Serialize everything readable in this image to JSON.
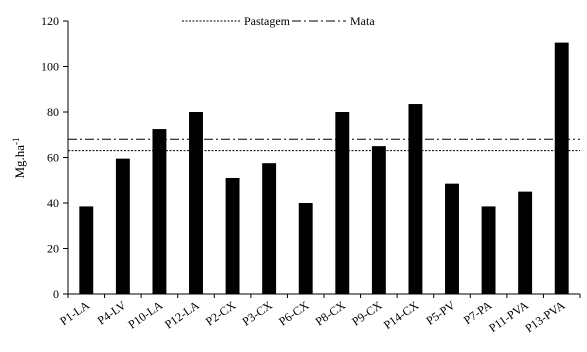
{
  "chart_data": {
    "type": "bar",
    "categories": [
      "P1-LA",
      "P4-LV",
      "P10-LA",
      "P12-LA",
      "P2-CX",
      "P3-CX",
      "P6-CX",
      "P8-CX",
      "P9-CX",
      "P14-CX",
      "P5-PV",
      "P7-PA",
      "P11-PVA",
      "P13-PVA"
    ],
    "values": [
      38.5,
      59.5,
      72.5,
      80,
      51,
      57.5,
      40,
      80,
      65,
      83.5,
      48.5,
      38.5,
      45,
      110.5
    ],
    "ylabel": "Mg.ha-1",
    "ylim": [
      0,
      120
    ],
    "yticks": [
      0,
      20,
      40,
      60,
      80,
      100,
      120
    ],
    "grid": false,
    "bar_color": "#000000",
    "reference_lines": [
      {
        "name": "Pastagem",
        "value": 63,
        "style": "dotted"
      },
      {
        "name": "Mata",
        "value": 68,
        "style": "dash-dot"
      }
    ],
    "legend": {
      "placement": "top-center",
      "entries": [
        "Pastagem",
        "Mata"
      ]
    }
  }
}
